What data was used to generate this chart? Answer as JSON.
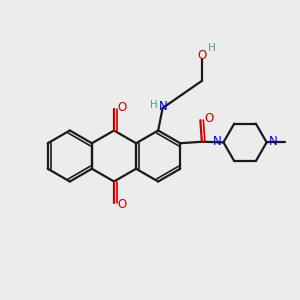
{
  "bg_color": "#ececec",
  "bond_color": "#1a1a1a",
  "oxygen_color": "#cc0000",
  "nitrogen_color": "#0000cc",
  "teal_color": "#4a9a9a",
  "figsize": [
    3.0,
    3.0
  ],
  "dpi": 100,
  "xlim": [
    0,
    10
  ],
  "ylim": [
    0,
    10
  ]
}
